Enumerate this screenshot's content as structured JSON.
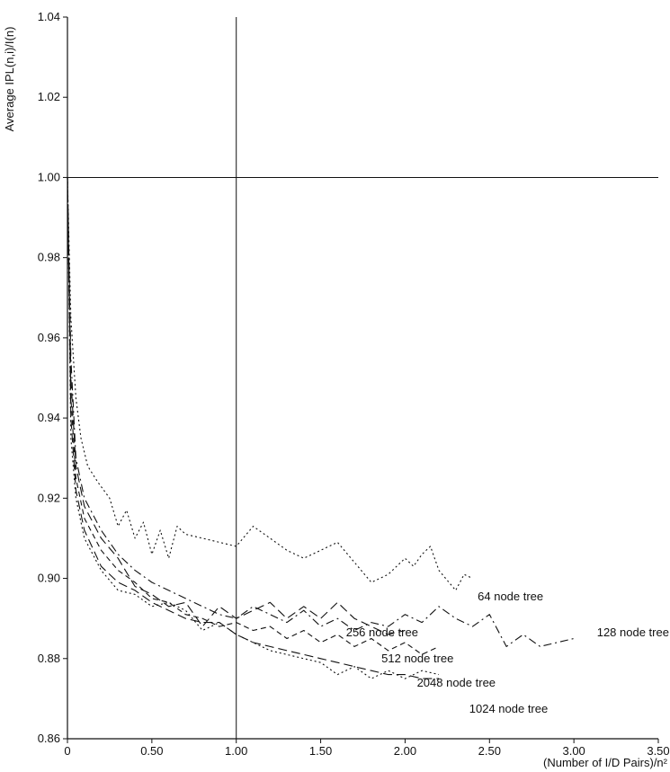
{
  "chart_data": {
    "type": "line",
    "xlabel": "(Number of I/D Pairs)/n²",
    "ylabel": "Average IPL(n,i)/I(n)",
    "xlim": [
      0,
      3.5
    ],
    "ylim": [
      0.86,
      1.04
    ],
    "xticks": [
      0,
      0.5,
      1.0,
      1.5,
      2.0,
      2.5,
      3.0,
      3.5
    ],
    "xtick_labels": [
      "0",
      "0.50",
      "1.00",
      "1.50",
      "2.00",
      "2.50",
      "3.00",
      "3.50"
    ],
    "yticks": [
      0.86,
      0.88,
      0.9,
      0.92,
      0.94,
      0.96,
      0.98,
      1.0,
      1.02,
      1.04
    ],
    "ytick_labels": [
      "0.86",
      "0.88",
      "0.90",
      "0.92",
      "0.94",
      "0.96",
      "0.98",
      "1.00",
      "1.02",
      "1.04"
    ],
    "grid": false,
    "reference_lines": [
      {
        "orientation": "horizontal",
        "value": 1.0
      },
      {
        "orientation": "vertical",
        "value": 1.0
      }
    ],
    "series": [
      {
        "name": "64 node tree",
        "dash": "dotted",
        "x": [
          0,
          0.02,
          0.05,
          0.08,
          0.12,
          0.18,
          0.25,
          0.3,
          0.35,
          0.4,
          0.45,
          0.5,
          0.55,
          0.6,
          0.65,
          0.7,
          0.8,
          0.9,
          1.0,
          1.1,
          1.2,
          1.3,
          1.4,
          1.5,
          1.6,
          1.7,
          1.8,
          1.9,
          2.0,
          2.05,
          2.1,
          2.15,
          2.2,
          2.3,
          2.35,
          2.4
        ],
        "y": [
          1.0,
          0.965,
          0.945,
          0.935,
          0.928,
          0.924,
          0.92,
          0.913,
          0.917,
          0.91,
          0.914,
          0.906,
          0.912,
          0.905,
          0.913,
          0.911,
          0.91,
          0.909,
          0.908,
          0.913,
          0.91,
          0.907,
          0.905,
          0.907,
          0.909,
          0.904,
          0.899,
          0.901,
          0.905,
          0.903,
          0.906,
          0.908,
          0.902,
          0.897,
          0.901,
          0.9
        ]
      },
      {
        "name": "128 node tree",
        "dash": "dash-dot",
        "x": [
          0,
          0.02,
          0.05,
          0.1,
          0.2,
          0.3,
          0.4,
          0.5,
          0.6,
          0.7,
          0.8,
          0.9,
          1.0,
          1.1,
          1.2,
          1.3,
          1.4,
          1.5,
          1.6,
          1.7,
          1.8,
          1.9,
          2.0,
          2.1,
          2.2,
          2.3,
          2.4,
          2.5,
          2.6,
          2.7,
          2.8,
          2.9,
          3.0
        ],
        "y": [
          1.0,
          0.955,
          0.93,
          0.92,
          0.912,
          0.906,
          0.902,
          0.899,
          0.897,
          0.895,
          0.893,
          0.891,
          0.89,
          0.893,
          0.891,
          0.889,
          0.892,
          0.888,
          0.89,
          0.887,
          0.889,
          0.888,
          0.891,
          0.889,
          0.893,
          0.89,
          0.888,
          0.891,
          0.883,
          0.886,
          0.883,
          0.884,
          0.885
        ]
      },
      {
        "name": "256 node tree",
        "dash": "long-dash",
        "x": [
          0,
          0.02,
          0.05,
          0.1,
          0.2,
          0.3,
          0.4,
          0.5,
          0.6,
          0.7,
          0.8,
          0.9,
          1.0,
          1.1,
          1.2,
          1.3,
          1.4,
          1.5,
          1.6,
          1.7,
          1.8,
          1.9,
          2.0
        ],
        "y": [
          1.0,
          0.95,
          0.928,
          0.918,
          0.91,
          0.905,
          0.898,
          0.896,
          0.893,
          0.894,
          0.888,
          0.893,
          0.89,
          0.892,
          0.894,
          0.89,
          0.893,
          0.89,
          0.894,
          0.89,
          0.888,
          0.886,
          0.887
        ]
      },
      {
        "name": "512 node tree",
        "dash": "dashed",
        "x": [
          0,
          0.02,
          0.05,
          0.1,
          0.2,
          0.3,
          0.4,
          0.5,
          0.6,
          0.7,
          0.8,
          0.9,
          1.0,
          1.1,
          1.2,
          1.3,
          1.4,
          1.5,
          1.6,
          1.7,
          1.8,
          1.9,
          2.0,
          2.1,
          2.2
        ],
        "y": [
          1.0,
          0.945,
          0.925,
          0.915,
          0.907,
          0.902,
          0.899,
          0.895,
          0.894,
          0.891,
          0.89,
          0.888,
          0.889,
          0.887,
          0.888,
          0.885,
          0.887,
          0.884,
          0.886,
          0.883,
          0.885,
          0.882,
          0.884,
          0.881,
          0.883
        ]
      },
      {
        "name": "2048 node tree",
        "dash": "long-dash",
        "x": [
          0,
          0.02,
          0.05,
          0.1,
          0.2,
          0.3,
          0.4,
          0.5,
          0.6,
          0.7,
          0.8,
          0.9,
          1.0,
          1.1,
          1.2,
          1.3,
          1.4,
          1.5,
          1.6,
          1.7,
          1.8,
          1.9,
          2.0,
          2.1,
          2.2
        ],
        "y": [
          1.0,
          0.94,
          0.922,
          0.912,
          0.903,
          0.899,
          0.897,
          0.894,
          0.892,
          0.89,
          0.889,
          0.889,
          0.886,
          0.884,
          0.883,
          0.882,
          0.881,
          0.88,
          0.879,
          0.878,
          0.877,
          0.876,
          0.876,
          0.875,
          0.875
        ]
      },
      {
        "name": "1024 node tree",
        "dash": "dotted",
        "x": [
          0,
          0.02,
          0.05,
          0.1,
          0.2,
          0.3,
          0.4,
          0.5,
          0.6,
          0.7,
          0.8,
          0.9,
          1.0,
          1.1,
          1.2,
          1.3,
          1.4,
          1.5,
          1.6,
          1.7,
          1.8,
          1.9,
          2.0,
          2.1,
          2.2
        ],
        "y": [
          1.0,
          0.935,
          0.92,
          0.91,
          0.902,
          0.897,
          0.896,
          0.893,
          0.894,
          0.892,
          0.887,
          0.889,
          0.886,
          0.884,
          0.882,
          0.881,
          0.88,
          0.879,
          0.876,
          0.878,
          0.875,
          0.877,
          0.875,
          0.877,
          0.876
        ]
      }
    ],
    "annotations": [
      {
        "text": "64 node tree",
        "series": "64 node tree"
      },
      {
        "text": "128 node tree",
        "series": "128 node tree"
      },
      {
        "text": "256 node tree",
        "series": "256 node tree"
      },
      {
        "text": "512 node tree",
        "series": "512 node tree"
      },
      {
        "text": "2048 node tree",
        "series": "2048 node tree"
      },
      {
        "text": "1024 node tree",
        "series": "1024 node tree"
      }
    ]
  }
}
